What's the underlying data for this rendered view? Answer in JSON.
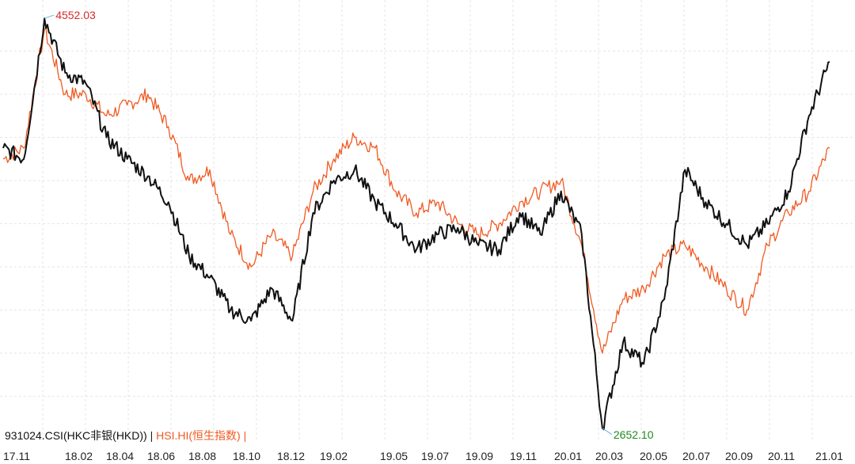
{
  "chart_data": {
    "type": "line",
    "title": "",
    "xlabel": "",
    "ylabel": "",
    "grid": true,
    "legend_position": "bottom-left",
    "x_ticks": [
      "17.11",
      "18.02",
      "18.04",
      "18.06",
      "18.08",
      "18.10",
      "18.12",
      "19.02",
      "19.05",
      "19.07",
      "19.09",
      "19.11",
      "20.01",
      "20.03",
      "20.05",
      "20.07",
      "20.09",
      "20.11",
      "21.01"
    ],
    "ylim": [
      2600,
      4600
    ],
    "annotations": {
      "high": {
        "label": "4552.03",
        "x": "18.01",
        "value": 4552.03
      },
      "low": {
        "label": "2652.10",
        "x": "20.03",
        "value": 2652.1
      }
    },
    "series": [
      {
        "name": "931024.CSI(HKC非银(HKD))",
        "color": "#111111",
        "x": [
          "17.11",
          "17.12",
          "18.01",
          "18.01b",
          "18.02",
          "18.03",
          "18.04",
          "18.05",
          "18.06",
          "18.07",
          "18.08",
          "18.09",
          "18.10",
          "18.11",
          "18.12",
          "19.01",
          "19.02",
          "19.03",
          "19.04",
          "19.05",
          "19.06",
          "19.07",
          "19.08",
          "19.09",
          "19.10",
          "19.11",
          "19.12",
          "20.01",
          "20.02",
          "20.03",
          "20.04",
          "20.05",
          "20.06",
          "20.07",
          "20.08",
          "20.09",
          "20.10",
          "20.11",
          "20.12",
          "21.01",
          "21.02"
        ],
        "values": [
          3950,
          3900,
          4552.03,
          4300,
          4250,
          4000,
          3900,
          3820,
          3700,
          3450,
          3350,
          3200,
          3150,
          3300,
          3150,
          3650,
          3800,
          3850,
          3700,
          3600,
          3480,
          3550,
          3580,
          3500,
          3480,
          3650,
          3550,
          3750,
          3550,
          2652.1,
          3050,
          2950,
          3250,
          3850,
          3700,
          3600,
          3500,
          3600,
          3750,
          4100,
          4350
        ]
      },
      {
        "name": "HSI.HI(恒生指数)",
        "color": "#f05a22",
        "x": [
          "17.11",
          "17.12",
          "18.01",
          "18.01b",
          "18.02",
          "18.03",
          "18.04",
          "18.05",
          "18.06",
          "18.07",
          "18.08",
          "18.09",
          "18.10",
          "18.11",
          "18.12",
          "19.01",
          "19.02",
          "19.03",
          "19.04",
          "19.05",
          "19.06",
          "19.07",
          "19.08",
          "19.09",
          "19.10",
          "19.11",
          "19.12",
          "20.01",
          "20.02",
          "20.03",
          "20.04",
          "20.05",
          "20.06",
          "20.07",
          "20.08",
          "20.09",
          "20.10",
          "20.11",
          "20.12",
          "21.01",
          "21.02"
        ],
        "values": [
          3900,
          3950,
          4500,
          4200,
          4200,
          4100,
          4150,
          4200,
          4050,
          3800,
          3850,
          3550,
          3400,
          3550,
          3450,
          3750,
          3900,
          4000,
          3950,
          3750,
          3650,
          3700,
          3600,
          3550,
          3600,
          3700,
          3750,
          3800,
          3500,
          3000,
          3250,
          3300,
          3450,
          3500,
          3400,
          3300,
          3200,
          3500,
          3650,
          3750,
          3950
        ]
      }
    ]
  }
}
